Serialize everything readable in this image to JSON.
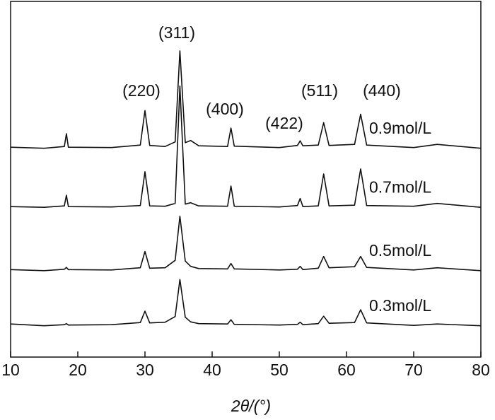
{
  "chart_data": {
    "type": "line",
    "xlabel": "2θ/(°)",
    "annotations": [
      "(311)",
      "(220)",
      "(400)",
      "(422)",
      "(511)",
      "(440)"
    ],
    "x": [
      10,
      15,
      18,
      18.3,
      18.6,
      25,
      29.3,
      30,
      30.7,
      33,
      34.5,
      35.2,
      36,
      36.8,
      38,
      42.3,
      42.8,
      43.3,
      50,
      52.7,
      53.1,
      53.5,
      55.8,
      56.6,
      57.4,
      61.2,
      62.1,
      63,
      70,
      73.5,
      80
    ],
    "series": [
      {
        "name": "0.9mol/L",
        "color": "#111111",
        "values": [
          59.0,
          58.7,
          59.2,
          62.8,
          59.0,
          58.9,
          59.6,
          69.3,
          59.5,
          59.2,
          60.5,
          86.1,
          60.3,
          60.9,
          59.4,
          59.2,
          64.4,
          59.3,
          58.9,
          59.5,
          60.8,
          59.4,
          59.6,
          65.9,
          59.5,
          59.8,
          68.3,
          59.6,
          58.9,
          59.8,
          58.7
        ]
      },
      {
        "name": "0.7mol/L",
        "color": "#111111",
        "values": [
          42.3,
          42.1,
          42.5,
          45.5,
          42.3,
          42.2,
          42.6,
          52.1,
          42.5,
          42.4,
          43.2,
          76.2,
          43.0,
          43.4,
          42.5,
          42.4,
          48.1,
          42.4,
          42.2,
          42.6,
          44.6,
          42.3,
          42.5,
          51.5,
          42.5,
          42.7,
          52.9,
          42.6,
          42.4,
          43.2,
          42.1
        ]
      },
      {
        "name": "0.5mol/L",
        "color": "#111111",
        "values": [
          24.6,
          24.3,
          24.7,
          25.2,
          24.6,
          24.5,
          25.1,
          29.7,
          25.0,
          25.1,
          27.2,
          39.6,
          27.0,
          25.5,
          24.9,
          24.8,
          26.3,
          24.8,
          24.5,
          24.7,
          25.5,
          24.6,
          25.0,
          28.3,
          25.1,
          25.4,
          28.3,
          25.2,
          24.5,
          25.1,
          24.3
        ]
      },
      {
        "name": "0.3mol/L",
        "color": "#111111",
        "values": [
          9.3,
          8.8,
          9.1,
          9.4,
          9.0,
          9.1,
          9.7,
          12.9,
          9.6,
          9.8,
          11.4,
          21.8,
          11.2,
          9.9,
          9.4,
          9.3,
          10.5,
          9.2,
          9.0,
          9.2,
          9.8,
          9.1,
          9.4,
          11.5,
          9.5,
          9.7,
          13.3,
          9.6,
          8.9,
          9.3,
          8.8
        ]
      }
    ],
    "xlim": [
      10,
      80
    ],
    "xticks": [
      10,
      20,
      30,
      40,
      50,
      60,
      70,
      80
    ],
    "ylim": [
      0,
      100
    ]
  }
}
